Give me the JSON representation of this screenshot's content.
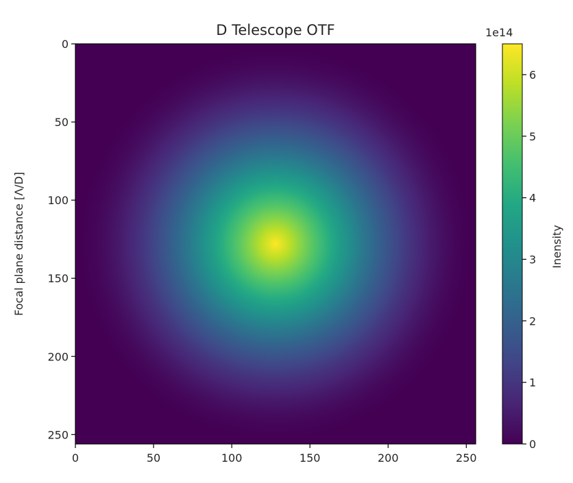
{
  "chart_data": {
    "type": "heatmap",
    "title": "D Telescope OTF",
    "xlabel": "",
    "ylabel": "Focal plane distance [Λ/D]",
    "colorbar_label": "Inensity",
    "colorbar_exponent": "1e14",
    "colormap": "viridis",
    "grid": false,
    "image_size": [
      256,
      256
    ],
    "peak_position": [
      128,
      128
    ],
    "peak_value": 6.5,
    "falloff": "circular, decreasing from the centre to 0 at about radius 128",
    "xlim": [
      0,
      256
    ],
    "ylim": [
      256,
      0
    ],
    "x_ticks": [
      0,
      50,
      100,
      150,
      200,
      250
    ],
    "y_ticks": [
      0,
      50,
      100,
      150,
      200,
      250
    ],
    "colorbar_range": [
      0,
      6.5
    ],
    "colorbar_ticks": [
      0,
      1,
      2,
      3,
      4,
      5,
      6
    ]
  }
}
